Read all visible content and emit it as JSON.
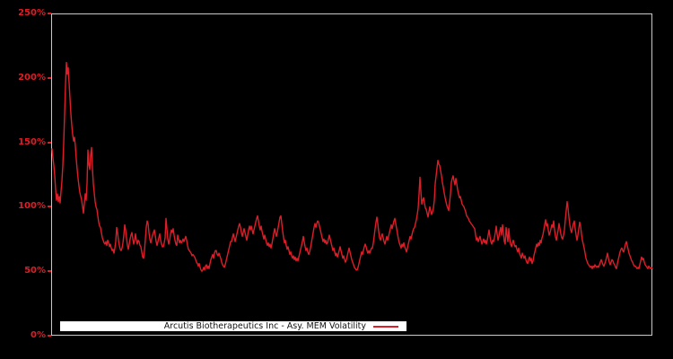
{
  "chart_data": {
    "type": "line",
    "title": "",
    "legend_position": "bottom-left-inside",
    "grid": false,
    "background_color": "#000000",
    "axis_border_color": "#c9c9c9",
    "y_axis": {
      "unit": "%",
      "range": [
        0,
        250
      ],
      "ticks": [
        0,
        50,
        100,
        150,
        200,
        250
      ],
      "tick_labels": [
        "0%",
        "50%",
        "100%",
        "150%",
        "200%",
        "250%"
      ],
      "tick_color": "#dd1e28",
      "label": ""
    },
    "x_axis": {
      "label": "",
      "tick_labels": [],
      "note": "unlabeled time axis"
    },
    "series": [
      {
        "name": "Arcutis Biotherapeutics Inc - Asy. MEM Volatility",
        "color": "#dd1e28",
        "values_pct": [
          145,
          138,
          132,
          124,
          113,
          105,
          110,
          104,
          108,
          103,
          112,
          120,
          132,
          150,
          172,
          194,
          212,
          203,
          208,
          196,
          184,
          172,
          163,
          156,
          151,
          154,
          147,
          137,
          129,
          122,
          116,
          111,
          108,
          105,
          100,
          95,
          103,
          110,
          105,
          118,
          144,
          133,
          129,
          140,
          146,
          130,
          118,
          111,
          104,
          100,
          98,
          93,
          88,
          85,
          84,
          80,
          76,
          74,
          72,
          71,
          73,
          70,
          74,
          72,
          69,
          71,
          68,
          66,
          67,
          64,
          68,
          73,
          84,
          80,
          74,
          70,
          67,
          66,
          68,
          72,
          78,
          86,
          82,
          76,
          70,
          67,
          71,
          75,
          78,
          80,
          75,
          71,
          74,
          79,
          74,
          71,
          74,
          73,
          70,
          69,
          65,
          61,
          60,
          66,
          75,
          84,
          89,
          87,
          80,
          75,
          72,
          75,
          78,
          80,
          82,
          78,
          73,
          70,
          73,
          76,
          79,
          74,
          71,
          69,
          69,
          72,
          76,
          91,
          83,
          75,
          71,
          74,
          79,
          82,
          80,
          83,
          78,
          74,
          71,
          70,
          78,
          75,
          72,
          74,
          72,
          73,
          75,
          73,
          75,
          77,
          74,
          70,
          67,
          66,
          65,
          64,
          62,
          63,
          62,
          61,
          59,
          57,
          56,
          54,
          56,
          53,
          51,
          50,
          51,
          53,
          51,
          54,
          55,
          52,
          54,
          52,
          56,
          59,
          61,
          63,
          60,
          64,
          66,
          66,
          63,
          62,
          64,
          62,
          60,
          57,
          55,
          54,
          53,
          55,
          58,
          61,
          64,
          67,
          70,
          73,
          73,
          76,
          79,
          76,
          73,
          76,
          79,
          82,
          85,
          87,
          84,
          80,
          77,
          80,
          83,
          80,
          77,
          74,
          78,
          82,
          85,
          82,
          85,
          82,
          79,
          82,
          85,
          88,
          91,
          93,
          89,
          85,
          82,
          85,
          81,
          78,
          75,
          78,
          75,
          72,
          70,
          72,
          69,
          71,
          68,
          71,
          75,
          79,
          83,
          80,
          77,
          80,
          84,
          88,
          92,
          93,
          87,
          81,
          76,
          72,
          74,
          70,
          67,
          69,
          66,
          63,
          65,
          62,
          60,
          62,
          59,
          61,
          58,
          60,
          58,
          61,
          64,
          67,
          70,
          73,
          77,
          73,
          69,
          66,
          68,
          65,
          63,
          65,
          68,
          72,
          76,
          80,
          84,
          87,
          84,
          87,
          89,
          88,
          85,
          82,
          79,
          76,
          73,
          75,
          72,
          74,
          71,
          72,
          75,
          78,
          75,
          72,
          69,
          66,
          68,
          65,
          62,
          64,
          61,
          63,
          66,
          69,
          66,
          63,
          60,
          62,
          59,
          57,
          59,
          62,
          65,
          68,
          65,
          62,
          59,
          57,
          55,
          53,
          52,
          51,
          51,
          53,
          56,
          59,
          62,
          65,
          63,
          66,
          69,
          71,
          69,
          66,
          64,
          66,
          64,
          66,
          68,
          68,
          72,
          77,
          83,
          88,
          92,
          87,
          81,
          76,
          74,
          77,
          79,
          76,
          73,
          71,
          74,
          77,
          74,
          77,
          80,
          83,
          86,
          83,
          86,
          89,
          91,
          87,
          83,
          79,
          75,
          72,
          70,
          68,
          71,
          69,
          72,
          69,
          67,
          65,
          68,
          71,
          74,
          77,
          75,
          78,
          81,
          83,
          84,
          87,
          90,
          94,
          99,
          110,
          123,
          112,
          102,
          105,
          107,
          103,
          99,
          98,
          95,
          92,
          96,
          100,
          97,
          94,
          96,
          99,
          105,
          118,
          124,
          130,
          136,
          133,
          132,
          128,
          124,
          119,
          115,
          111,
          107,
          104,
          101,
          99,
          97,
          103,
          110,
          119,
          122,
          124,
          120,
          117,
          122,
          118,
          113,
          110,
          107,
          108,
          105,
          102,
          101,
          100,
          98,
          96,
          93,
          92,
          91,
          89,
          88,
          87,
          86,
          85,
          84,
          83,
          78,
          74,
          76,
          73,
          75,
          77,
          74,
          71,
          73,
          75,
          72,
          74,
          71,
          74,
          78,
          82,
          77,
          73,
          71,
          74,
          73,
          76,
          80,
          85,
          79,
          74,
          77,
          81,
          84,
          78,
          86,
          80,
          73,
          71,
          84,
          78,
          73,
          83,
          75,
          71,
          69,
          72,
          74,
          71,
          69,
          70,
          67,
          65,
          68,
          64,
          62,
          60,
          64,
          62,
          60,
          62,
          59,
          57,
          56,
          59,
          61,
          58,
          60,
          56,
          58,
          62,
          65,
          68,
          71,
          69,
          72,
          70,
          74,
          72,
          76,
          78,
          82,
          86,
          90,
          85,
          87,
          82,
          78,
          80,
          83,
          86,
          84,
          89,
          82,
          77,
          74,
          78,
          82,
          87,
          83,
          79,
          76,
          75,
          78,
          82,
          90,
          97,
          104,
          99,
          92,
          86,
          82,
          80,
          84,
          87,
          89,
          83,
          78,
          74,
          78,
          83,
          88,
          85,
          79,
          74,
          71,
          68,
          64,
          60,
          58,
          56,
          55,
          54,
          53,
          54,
          52,
          54,
          53,
          55,
          54,
          53,
          54,
          53,
          55,
          57,
          59,
          57,
          55,
          54,
          56,
          58,
          61,
          64,
          60,
          57,
          55,
          57,
          59,
          58,
          56,
          55,
          53,
          52,
          56,
          59,
          62,
          65,
          67,
          68,
          66,
          65,
          68,
          71,
          73,
          70,
          67,
          64,
          62,
          60,
          58,
          57,
          55,
          54,
          54,
          53,
          52,
          53,
          52,
          55,
          58,
          61,
          59,
          60,
          57,
          55,
          54,
          53,
          52,
          54,
          53,
          52,
          53,
          52
        ]
      }
    ],
    "legend": {
      "label": "Arcutis Biotherapeutics Inc - Asy. MEM Volatility",
      "background": "#ffffff",
      "text_color": "#111111"
    }
  }
}
